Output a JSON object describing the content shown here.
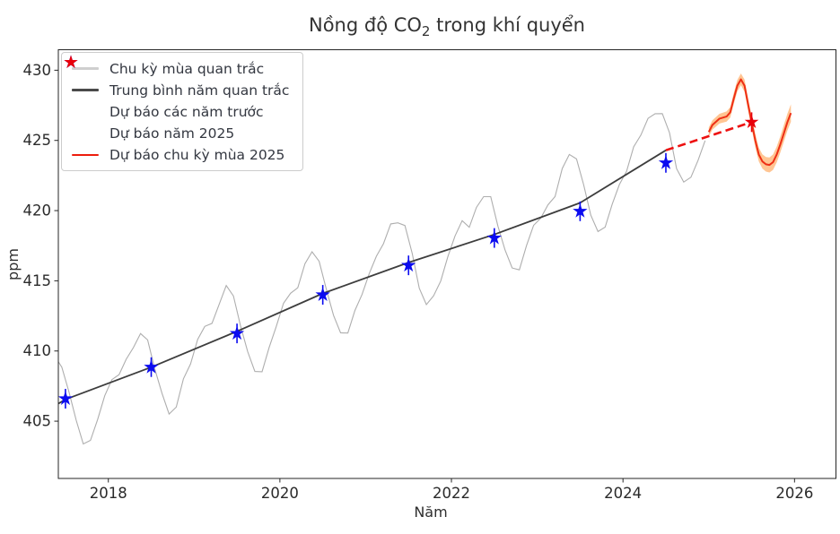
{
  "chart_data": {
    "type": "line",
    "title": "Nồng độ CO2 trong khí quyển",
    "title_parts": {
      "prefix": "Nồng độ CO",
      "sub": "2",
      "suffix": " trong khí quyển"
    },
    "xlabel": "Năm",
    "ylabel": "ppm",
    "xlim": [
      2017.417,
      2026.483
    ],
    "ylim": [
      400.92,
      431.46
    ],
    "x_ticks": [
      "2018",
      "2020",
      "2022",
      "2024",
      "2026"
    ],
    "x_tick_values": [
      2018,
      2020,
      2022,
      2024,
      2026
    ],
    "y_ticks": [
      "405",
      "410",
      "415",
      "420",
      "425",
      "430"
    ],
    "y_tick_values": [
      405,
      410,
      415,
      420,
      425,
      430
    ],
    "grid": false,
    "legend_position": "upper left",
    "series": [
      {
        "id": "observed_seasonal",
        "name": "Chu kỳ mùa quan trắc",
        "type": "line",
        "color": "#aeaeae",
        "width": 1.1,
        "x": [
          2017.375,
          2017.458,
          2017.542,
          2017.625,
          2017.708,
          2017.792,
          2017.875,
          2017.958,
          2018.042,
          2018.125,
          2018.208,
          2018.292,
          2018.375,
          2018.458,
          2018.542,
          2018.625,
          2018.708,
          2018.792,
          2018.875,
          2018.958,
          2019.042,
          2019.125,
          2019.208,
          2019.292,
          2019.375,
          2019.458,
          2019.542,
          2019.625,
          2019.708,
          2019.792,
          2019.875,
          2019.958,
          2020.042,
          2020.125,
          2020.208,
          2020.292,
          2020.375,
          2020.458,
          2020.542,
          2020.625,
          2020.708,
          2020.792,
          2020.875,
          2020.958,
          2021.042,
          2021.125,
          2021.208,
          2021.292,
          2021.375,
          2021.458,
          2021.542,
          2021.625,
          2021.708,
          2021.792,
          2021.875,
          2021.958,
          2022.042,
          2022.125,
          2022.208,
          2022.292,
          2022.375,
          2022.458,
          2022.542,
          2022.625,
          2022.708,
          2022.792,
          2022.875,
          2022.958,
          2023.042,
          2023.125,
          2023.208,
          2023.292,
          2023.375,
          2023.458,
          2023.542,
          2023.625,
          2023.708,
          2023.792,
          2023.875,
          2023.958,
          2024.042,
          2024.125,
          2024.208,
          2024.292,
          2024.375,
          2024.458,
          2024.542,
          2024.625,
          2024.708,
          2024.792,
          2024.875,
          2024.958
        ],
        "y": [
          409.65,
          408.84,
          407.07,
          405.07,
          403.38,
          403.63,
          405.12,
          406.81,
          407.96,
          408.32,
          409.41,
          410.24,
          411.24,
          410.79,
          408.71,
          406.99,
          405.51,
          406.0,
          408.02,
          409.07,
          410.83,
          411.75,
          411.97,
          413.32,
          414.66,
          413.92,
          411.77,
          409.95,
          408.54,
          408.52,
          410.25,
          411.76,
          413.4,
          414.11,
          414.5,
          416.21,
          417.07,
          416.39,
          414.38,
          412.55,
          411.29,
          411.28,
          412.89,
          414.02,
          415.52,
          416.75,
          417.64,
          419.05,
          419.13,
          418.94,
          416.96,
          414.47,
          413.3,
          413.93,
          414.98,
          416.71,
          418.19,
          419.28,
          418.81,
          420.23,
          420.99,
          420.99,
          418.9,
          417.19,
          415.91,
          415.78,
          417.51,
          418.95,
          419.47,
          420.41,
          421.0,
          423.0,
          424.0,
          423.68,
          421.83,
          419.68,
          418.51,
          418.82,
          420.46,
          421.86,
          422.8,
          424.55,
          425.38,
          426.57,
          426.9,
          426.91,
          425.55,
          422.99,
          422.03,
          422.38,
          423.57,
          424.99
        ]
      },
      {
        "id": "annual_mean",
        "name": "Trung bình năm quan trắc",
        "type": "line",
        "color": "#3d3d3d",
        "width": 1.8,
        "x": [
          2017.417,
          2017.5,
          2018.5,
          2019.5,
          2020.5,
          2021.5,
          2022.5,
          2023.5,
          2024.5
        ],
        "y": [
          406.25,
          406.55,
          408.85,
          411.4,
          414.1,
          416.3,
          418.3,
          420.55,
          424.3
        ]
      },
      {
        "id": "forecast_connector",
        "name": "Đường dự báo trung bình 2025",
        "type": "line",
        "style": "dashed",
        "color": "#ed1111",
        "width": 2.6,
        "x": [
          2024.5,
          2025.5
        ],
        "y": [
          424.3,
          426.3
        ]
      },
      {
        "id": "forecast_seasonal_2025",
        "name": "Dự báo chu kỳ mùa 2025",
        "type": "line",
        "color": "#ee2f15",
        "width": 2,
        "band_color": "rgba(255,150,58,0.55)",
        "band_halfwidth": [
          0.32,
          0.62
        ],
        "x": [
          2025.0,
          2025.042,
          2025.125,
          2025.208,
          2025.25,
          2025.292,
          2025.333,
          2025.375,
          2025.417,
          2025.458,
          2025.5,
          2025.542,
          2025.583,
          2025.625,
          2025.667,
          2025.708,
          2025.75,
          2025.792,
          2025.833,
          2025.875,
          2025.917,
          2025.958
        ],
        "y": [
          425.6,
          426.1,
          426.55,
          426.7,
          427.0,
          428.0,
          428.9,
          429.35,
          428.9,
          427.6,
          426.3,
          425.0,
          424.0,
          423.5,
          423.3,
          423.25,
          423.45,
          424.0,
          424.7,
          425.5,
          426.3,
          426.95
        ]
      },
      {
        "id": "prev_forecasts",
        "name": "Dự báo các năm trước",
        "type": "scatter",
        "marker": "star",
        "color": "#0b0bf0",
        "errorbar_halfwidth": 0.7,
        "x": [
          2017.5,
          2018.5,
          2019.5,
          2020.5,
          2021.5,
          2022.5,
          2023.5,
          2024.5
        ],
        "y": [
          406.6,
          408.85,
          411.25,
          414.0,
          416.1,
          418.05,
          419.95,
          423.4
        ]
      },
      {
        "id": "forecast_2025",
        "name": "Dự báo năm 2025",
        "type": "scatter",
        "marker": "star",
        "color": "#e8000b",
        "errorbar_halfwidth": 0.7,
        "x": [
          2025.5
        ],
        "y": [
          426.3
        ]
      }
    ],
    "legend": {
      "items": [
        {
          "label": "Chu kỳ mùa quan trắc",
          "swatch": "line",
          "color": "#cfcfcf",
          "thickness": 2.5
        },
        {
          "label": "Trung bình năm quan trắc",
          "swatch": "line",
          "color": "#4a4a4a",
          "thickness": 3
        },
        {
          "label": "Dự báo các năm trước",
          "swatch": "star",
          "color": "#0b0bf0"
        },
        {
          "label": "Dự báo năm 2025",
          "swatch": "star",
          "color": "#e8000b"
        },
        {
          "label": "Dự báo chu kỳ mùa 2025",
          "swatch": "line",
          "color": "#ed1c0c",
          "thickness": 2
        }
      ]
    }
  }
}
